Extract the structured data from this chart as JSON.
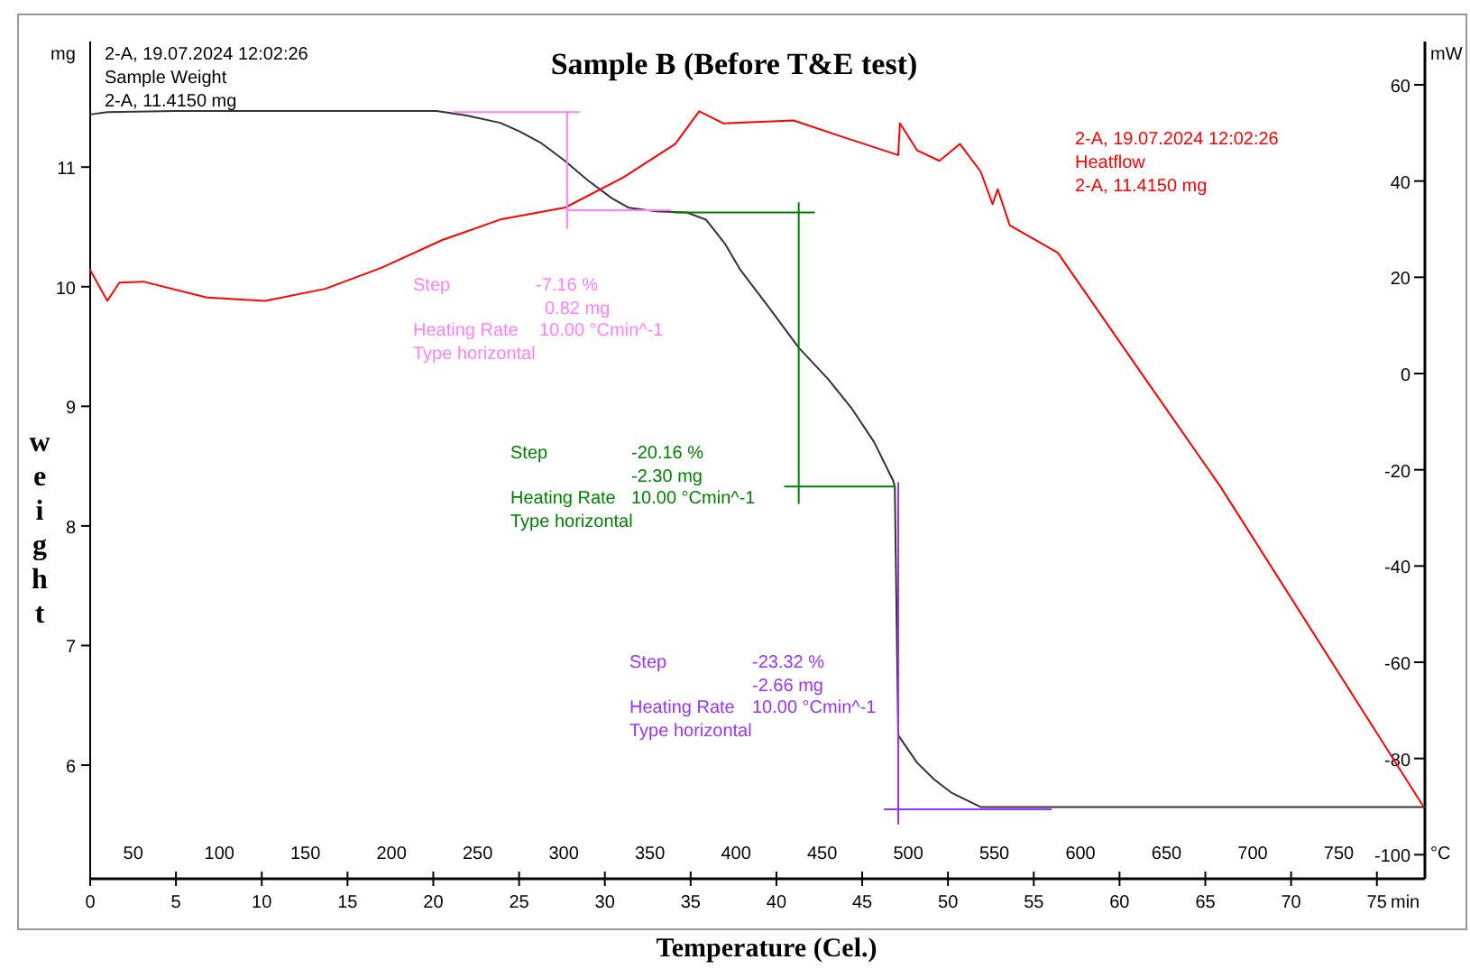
{
  "chart_data": {
    "type": "line",
    "title": "Sample B (Before T&E test)",
    "xlabel": "Temperature (Cel.)",
    "ylabel": "weight",
    "xlim": [
      0,
      77.8
    ],
    "xticks": [
      0,
      5,
      10,
      15,
      20,
      25,
      30,
      35,
      40,
      45,
      50,
      55,
      60,
      65,
      70,
      75
    ],
    "x2lim": [
      25,
      800
    ],
    "x2ticks": [
      50,
      100,
      150,
      200,
      250,
      300,
      350,
      400,
      450,
      500,
      550,
      600,
      650,
      700,
      750
    ],
    "ylim": [
      5.05,
      12.05
    ],
    "yticks": [
      6,
      7,
      8,
      9,
      10,
      11
    ],
    "y2lim": [
      -105,
      69
    ],
    "y2ticks": [
      -100,
      -80,
      -60,
      -40,
      -20,
      0,
      20,
      40,
      60
    ],
    "grid": false,
    "series": [
      {
        "name": "Sample Weight",
        "color": "#333333",
        "x": [
          0,
          1,
          5,
          20.2,
          22,
          23.9,
          25,
          26.3,
          27.6,
          29,
          30.4,
          31.4,
          33,
          34.8,
          35.9,
          37,
          37.9,
          39.6,
          41.3,
          43,
          44.4,
          45.7,
          46.8,
          46.9,
          47.1,
          48.2,
          49.2,
          50.2,
          51.9,
          60,
          77.8
        ],
        "values": [
          11.44,
          11.46,
          11.47,
          11.47,
          11.43,
          11.37,
          11.3,
          11.2,
          11.06,
          10.89,
          10.74,
          10.66,
          10.63,
          10.62,
          10.56,
          10.36,
          10.14,
          9.82,
          9.49,
          9.23,
          8.98,
          8.7,
          8.38,
          8.33,
          6.25,
          6.02,
          5.88,
          5.77,
          5.65,
          5.65,
          5.65
        ]
      },
      {
        "name": "Heatflow",
        "color": "#ff0000",
        "axis": "y2",
        "x": [
          0,
          1,
          1.7,
          3.1,
          6.8,
          10.2,
          13.7,
          17,
          20.5,
          23.9,
          27.7,
          31.1,
          34.1,
          35.5,
          36.9,
          41,
          44,
          47.1,
          47.2,
          48.2,
          49.5,
          50.7,
          51.9,
          52.6,
          52.9,
          53.6,
          56.4,
          61.5,
          65.9,
          77.7
        ],
        "values": [
          21.5,
          15.1,
          18.9,
          19.1,
          15.8,
          15.1,
          17.6,
          22,
          27.7,
          32,
          34.5,
          40.8,
          47.7,
          54.5,
          52,
          52.6,
          49,
          45.4,
          52,
          46.4,
          44.2,
          47.7,
          42,
          35.2,
          38.3,
          30.8,
          25.1,
          -1.1,
          -23.6,
          -89.9
        ]
      },
      {
        "color": "#ff80ff",
        "x": [
          21.2,
          28.5
        ],
        "values": [
          11.46,
          11.46
        ]
      },
      {
        "color": "#ff80ff",
        "x": [
          27.8,
          27.8
        ],
        "values": [
          11.46,
          10.49
        ]
      },
      {
        "color": "#ff80ff",
        "x": [
          27.8,
          33.8
        ],
        "values": [
          10.64,
          10.64
        ]
      },
      {
        "color": "#008000",
        "x": [
          34.1,
          42.2
        ],
        "values": [
          10.62,
          10.62
        ]
      },
      {
        "color": "#008000",
        "x": [
          41.3,
          41.3
        ],
        "values": [
          10.7,
          8.19
        ]
      },
      {
        "color": "#008000",
        "x": [
          40.5,
          46.9
        ],
        "values": [
          8.33,
          8.33
        ]
      },
      {
        "color": "#9933ff",
        "x": [
          47.1,
          47.1
        ],
        "values": [
          8.36,
          5.51
        ]
      },
      {
        "color": "#9933ff",
        "x": [
          46.3,
          56
        ],
        "values": [
          5.63,
          5.63
        ]
      }
    ],
    "annotations": [
      "2-A, 19.07.2024 12:02:26",
      "2-A, 11.4150 mg",
      "2-A, 19.07.2024 12:02:26",
      "2-A, 11.4150 mg",
      "Step",
      "-7.16 %",
      "0.82 mg",
      "Heating Rate",
      "10.00 °Cmin^-1",
      "Type horizontal",
      "Step",
      "-20.16 %",
      "-2.30 mg",
      "Heating Rate",
      "10.00 °Cmin^-1",
      "Type horizontal",
      "Step",
      "-23.32 %",
      "-2.66 mg",
      "Heating Rate",
      "10.00 °Cmin^-1",
      "Type horizontal",
      "mg",
      "mW",
      "°C",
      "min"
    ]
  }
}
